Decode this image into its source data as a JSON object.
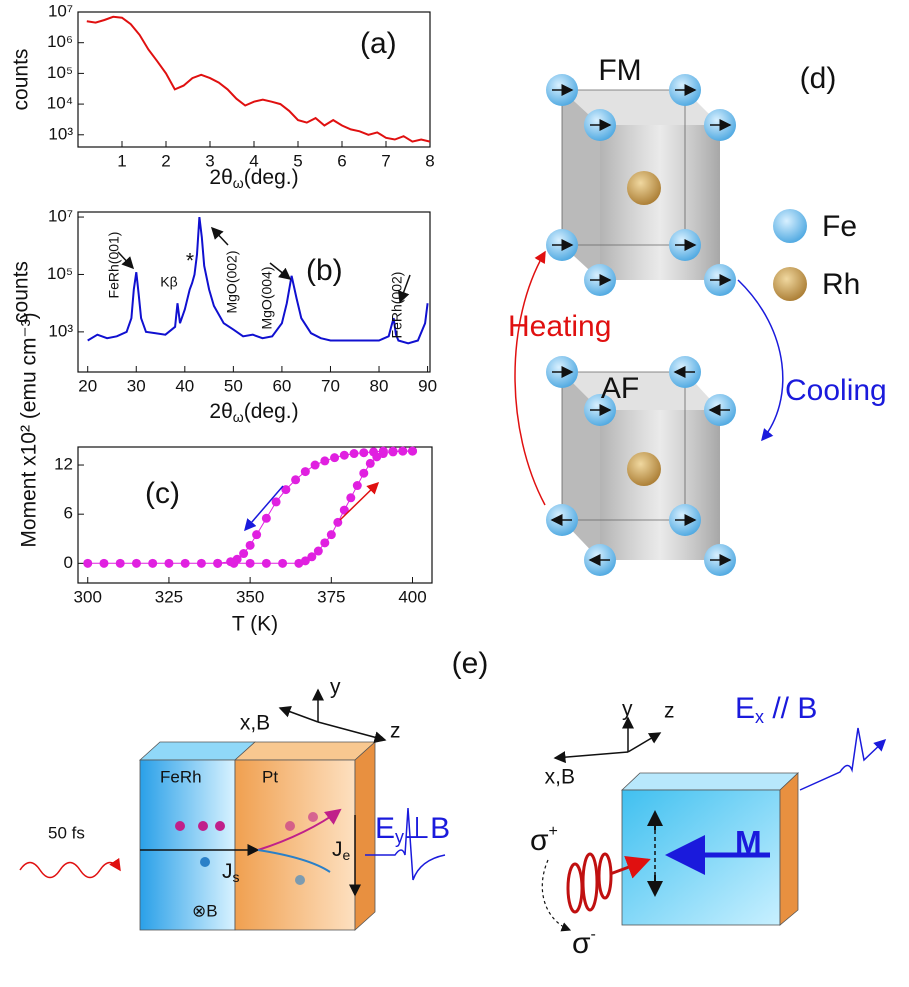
{
  "chart_data": [
    {
      "type": "line",
      "label": "(a)",
      "ylabel": "counts",
      "xlabel": {
        "main": "2θ",
        "sub": "ω",
        "rest": "(deg.)"
      },
      "log_y": true,
      "x": [
        0.2,
        0.4,
        0.6,
        0.8,
        1.0,
        1.2,
        1.4,
        1.6,
        1.8,
        2.0,
        2.2,
        2.4,
        2.6,
        2.8,
        3.0,
        3.2,
        3.4,
        3.6,
        3.8,
        4.0,
        4.2,
        4.4,
        4.6,
        4.8,
        5.0,
        5.2,
        5.4,
        5.6,
        5.8,
        6.0,
        6.2,
        6.4,
        6.6,
        6.8,
        7.0,
        7.2,
        7.4,
        7.6,
        7.8,
        8.0
      ],
      "series": [
        {
          "color": "#e01010",
          "values": [
            5000000,
            4500000,
            5500000,
            7000000,
            6500000,
            4000000,
            1800000,
            600000,
            250000,
            100000,
            30000,
            40000,
            70000,
            90000,
            70000,
            50000,
            30000,
            15000,
            9000,
            12000,
            14000,
            12000,
            10000,
            6000,
            3000,
            2500,
            3500,
            2000,
            3000,
            2000,
            1500,
            1300,
            1000,
            1200,
            800,
            700,
            900,
            600,
            700,
            600
          ]
        }
      ],
      "xlim": [
        0,
        8
      ],
      "xticks": [
        1,
        2,
        3,
        4,
        5,
        6,
        7,
        8
      ],
      "ylim": [
        400,
        10000000
      ],
      "yticks": [
        {
          "value": 1000,
          "label": "10³"
        },
        {
          "value": 10000,
          "label": "10⁴"
        },
        {
          "value": 100000,
          "label": "10⁵"
        },
        {
          "value": 1000000,
          "label": "10⁶"
        },
        {
          "value": 10000000,
          "label": "10⁷"
        }
      ]
    },
    {
      "type": "line",
      "label": "(b)",
      "ylabel": "counts",
      "xlabel": {
        "main": "2θ",
        "sub": "ω",
        "rest": "(deg.)"
      },
      "log_y": true,
      "x": [
        20,
        22,
        24,
        26,
        28,
        29,
        29.5,
        30,
        30.5,
        31,
        32,
        34,
        36,
        38,
        38.5,
        39,
        40,
        41,
        41.5,
        42,
        42.5,
        43,
        43.5,
        44,
        45,
        46,
        48,
        50,
        52,
        54,
        56,
        58,
        60,
        61,
        62,
        63,
        64,
        66,
        68,
        70,
        72,
        74,
        76,
        78,
        80,
        82,
        82.5,
        83,
        83.5,
        84,
        86,
        88,
        89.5,
        90
      ],
      "series": [
        {
          "color": "#1010d0",
          "values": [
            500,
            800,
            600,
            700,
            1000,
            3000,
            30000,
            120000,
            20000,
            3000,
            1000,
            900,
            800,
            1500,
            10000,
            2000,
            6000,
            30000,
            50000,
            100000,
            500000,
            10000000,
            2000000,
            200000,
            30000,
            8000,
            2000,
            1200,
            700,
            800,
            600,
            700,
            2000,
            10000,
            90000,
            15000,
            3000,
            900,
            600,
            500,
            500,
            500,
            500,
            500,
            500,
            700,
            1500,
            3000,
            800,
            500,
            400,
            500,
            2000,
            10000
          ]
        }
      ],
      "annotations": [
        "FeRh(001)",
        "Kβ",
        "*",
        "MgO(002)",
        "MgO(004)",
        "FeRh(002)"
      ],
      "xlim": [
        18,
        90.5
      ],
      "xticks": [
        20,
        30,
        40,
        50,
        60,
        70,
        80,
        90
      ],
      "ylim": [
        40,
        15000000
      ],
      "yticks": [
        {
          "value": 1000,
          "label": "10³"
        },
        {
          "value": 100000,
          "label": "10⁵"
        },
        {
          "value": 10000000,
          "label": "10⁷"
        }
      ]
    },
    {
      "type": "line",
      "label": "(c)",
      "ylabel": "Moment x10² (emu cm⁻³)",
      "xlabel": "T (K)",
      "markers": true,
      "series": [
        {
          "color": "#e020e0",
          "x": [
            300,
            305,
            310,
            315,
            320,
            325,
            330,
            335,
            340,
            345,
            350,
            355,
            360,
            365,
            367,
            369,
            371,
            373,
            375,
            377,
            379,
            381,
            383,
            385,
            387,
            389,
            391,
            394,
            397,
            400
          ],
          "values": [
            0,
            0,
            0,
            0,
            0,
            0,
            0,
            0,
            0,
            0,
            0,
            0,
            0,
            0,
            0.3,
            0.8,
            1.5,
            2.5,
            3.5,
            5,
            6.5,
            8,
            9.5,
            11,
            12.2,
            13,
            13.4,
            13.6,
            13.7,
            13.7
          ]
        },
        {
          "color": "#e020e0",
          "x": [
            400,
            397,
            394,
            391,
            388,
            385,
            382,
            379,
            376,
            373,
            370,
            367,
            364,
            361,
            358,
            355,
            352,
            350,
            348,
            346,
            344,
            340
          ],
          "values": [
            13.7,
            13.7,
            13.7,
            13.7,
            13.6,
            13.5,
            13.4,
            13.2,
            12.9,
            12.5,
            12,
            11.2,
            10.2,
            9,
            7.5,
            5.5,
            3.5,
            2.2,
            1.2,
            0.5,
            0.2,
            0
          ]
        }
      ],
      "xlim": [
        297,
        406
      ],
      "xticks": [
        300,
        325,
        350,
        375,
        400
      ],
      "ylim": [
        -2.4,
        14.2
      ],
      "yticks": [
        0,
        6,
        12
      ]
    }
  ],
  "panel_d": {
    "label": "(d)",
    "fm": "FM",
    "af": "AF",
    "legend": [
      "Fe",
      "Rh"
    ],
    "heating": "Heating",
    "cooling": "Cooling"
  },
  "panel_e": {
    "label": "(e)",
    "left": {
      "axes": [
        "x,B",
        "y",
        "z"
      ],
      "layers": [
        "FeRh",
        "Pt"
      ],
      "pulse": "50 fs",
      "js": {
        "main": "J",
        "sub": "s"
      },
      "je": {
        "main": "J",
        "sub": "e"
      },
      "b_in": "⊗B",
      "emission": {
        "main": "E",
        "sub": "y",
        "rest": "⊥B"
      }
    },
    "right": {
      "axes": [
        "x,B",
        "y",
        "z"
      ],
      "emission": {
        "main": "E",
        "sub": "x",
        "rest": " // B"
      },
      "m": "M",
      "sigma_plus": {
        "main": "σ",
        "sup": "+"
      },
      "sigma_minus": {
        "main": "σ",
        "sup": "-"
      }
    }
  }
}
